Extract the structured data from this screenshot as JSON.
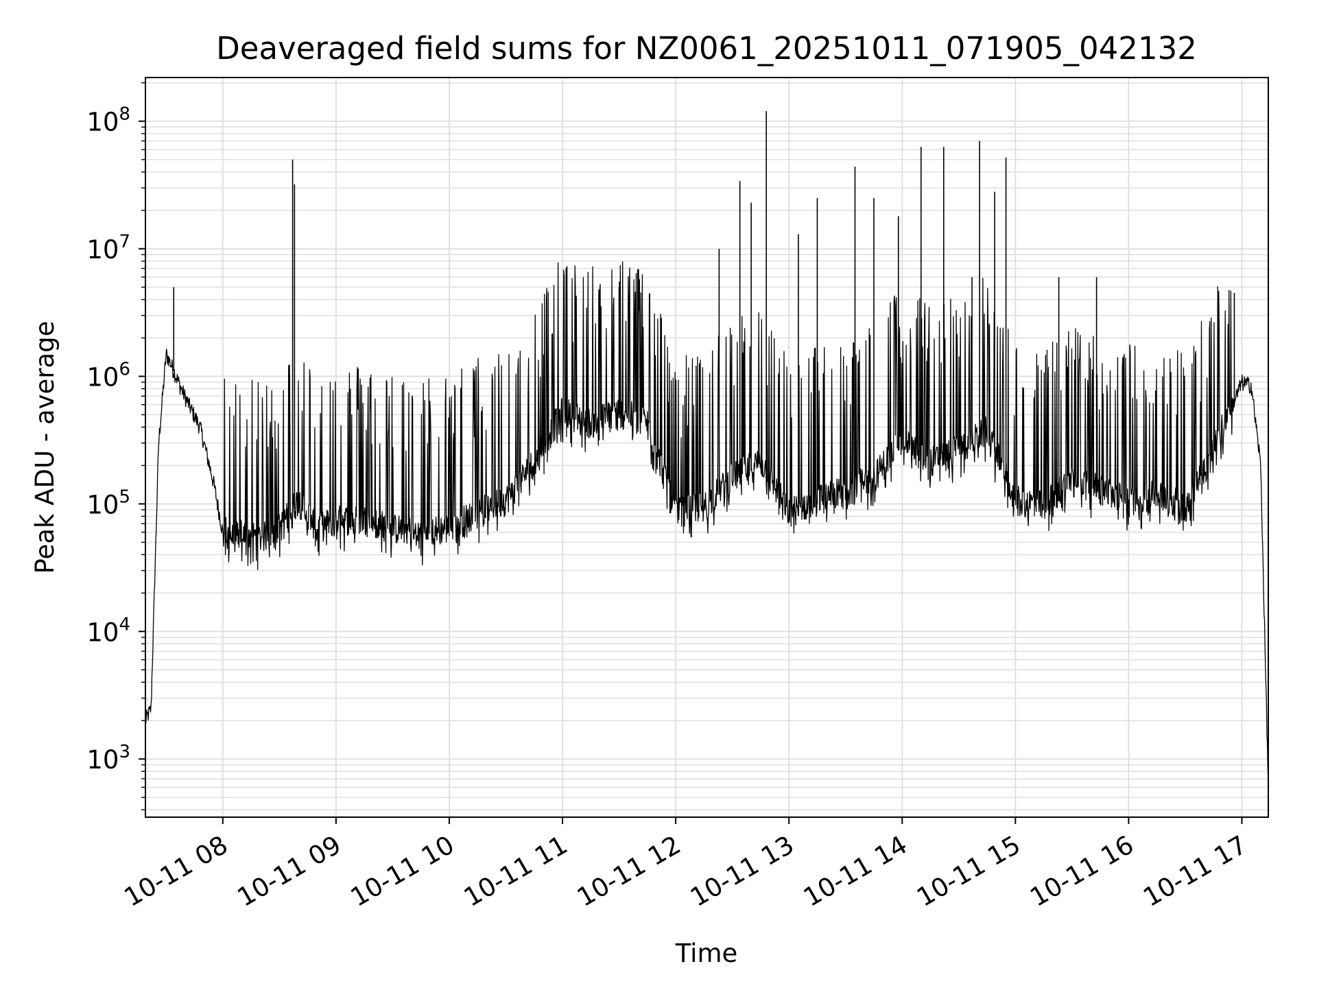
{
  "chart_data": {
    "type": "line",
    "title": "Deaveraged field sums for NZ0061_20251011_071905_042132",
    "xlabel": "Time",
    "ylabel": "Peak ADU - average",
    "yscale": "log",
    "ylim": [
      350,
      220000000
    ],
    "xlim": [
      "10-11 07:19",
      "10-11 17:14"
    ],
    "grid": true,
    "x_ticks": [
      "10-11 08",
      "10-11 09",
      "10-11 10",
      "10-11 11",
      "10-11 12",
      "10-11 13",
      "10-11 14",
      "10-11 15",
      "10-11 16",
      "10-11 17"
    ],
    "y_ticks": [
      {
        "base": "10",
        "exp": "3",
        "value": 1000
      },
      {
        "base": "10",
        "exp": "4",
        "value": 10000
      },
      {
        "base": "10",
        "exp": "5",
        "value": 100000
      },
      {
        "base": "10",
        "exp": "6",
        "value": 1000000
      },
      {
        "base": "10",
        "exp": "7",
        "value": 10000000
      },
      {
        "base": "10",
        "exp": "8",
        "value": 100000000
      }
    ],
    "line_color": "#000000",
    "grid_color": "#e0e0e0",
    "series": [
      {
        "x": [
          "10-11 07:19",
          "10-11 07:22",
          "10-11 07:26",
          "10-11 07:30",
          "10-11 07:33",
          "10-11 07:38",
          "10-11 07:42",
          "10-11 07:48",
          "10-11 07:55",
          "10-11 08:00",
          "10-11 08:05",
          "10-11 08:10",
          "10-11 08:20",
          "10-11 08:30",
          "10-11 08:40",
          "10-11 08:50",
          "10-11 09:00",
          "10-11 09:15",
          "10-11 09:30",
          "10-11 09:45",
          "10-11 10:00",
          "10-11 10:15",
          "10-11 10:30",
          "10-11 10:45",
          "10-11 11:00",
          "10-11 11:15",
          "10-11 11:30",
          "10-11 11:45",
          "10-11 12:00",
          "10-11 12:15",
          "10-11 12:30",
          "10-11 12:45",
          "10-11 13:00",
          "10-11 13:15",
          "10-11 13:30",
          "10-11 13:45",
          "10-11 14:00",
          "10-11 14:15",
          "10-11 14:30",
          "10-11 14:45",
          "10-11 15:00",
          "10-11 15:15",
          "10-11 15:30",
          "10-11 15:45",
          "10-11 16:00",
          "10-11 16:15",
          "10-11 16:30",
          "10-11 16:45",
          "10-11 17:00",
          "10-11 17:05",
          "10-11 17:10",
          "10-11 17:14"
        ],
        "values": [
          2000,
          2500,
          300000,
          1500000,
          1200000,
          800000,
          600000,
          400000,
          150000,
          60000,
          50000,
          55000,
          50000,
          60000,
          100000,
          60000,
          70000,
          70000,
          60000,
          55000,
          60000,
          80000,
          100000,
          200000,
          500000,
          400000,
          500000,
          400000,
          80000,
          90000,
          150000,
          200000,
          80000,
          100000,
          120000,
          150000,
          300000,
          200000,
          250000,
          350000,
          100000,
          90000,
          150000,
          120000,
          100000,
          110000,
          90000,
          250000,
          900000,
          850000,
          200000,
          600
        ]
      }
    ],
    "spikes": [
      {
        "x": "10-11 07:34",
        "y": 5000000
      },
      {
        "x": "10-11 08:37",
        "y": 50000000
      },
      {
        "x": "10-11 08:38",
        "y": 32000000
      },
      {
        "x": "10-11 11:30",
        "y": 5000000
      },
      {
        "x": "10-11 11:40",
        "y": 4500000
      },
      {
        "x": "10-11 12:23",
        "y": 10000000
      },
      {
        "x": "10-11 12:34",
        "y": 34000000
      },
      {
        "x": "10-11 12:40",
        "y": 23000000
      },
      {
        "x": "10-11 12:48",
        "y": 120000000
      },
      {
        "x": "10-11 13:05",
        "y": 13000000
      },
      {
        "x": "10-11 13:15",
        "y": 25000000
      },
      {
        "x": "10-11 13:35",
        "y": 44000000
      },
      {
        "x": "10-11 13:45",
        "y": 25000000
      },
      {
        "x": "10-11 13:58",
        "y": 18000000
      },
      {
        "x": "10-11 14:10",
        "y": 63000000
      },
      {
        "x": "10-11 14:22",
        "y": 63000000
      },
      {
        "x": "10-11 14:37",
        "y": 6000000
      },
      {
        "x": "10-11 14:41",
        "y": 70000000
      },
      {
        "x": "10-11 14:49",
        "y": 28000000
      },
      {
        "x": "10-11 14:55",
        "y": 52000000
      },
      {
        "x": "10-11 15:23",
        "y": 6000000
      },
      {
        "x": "10-11 15:43",
        "y": 6000000
      },
      {
        "x": "10-11 16:56",
        "y": 4500000
      }
    ]
  }
}
